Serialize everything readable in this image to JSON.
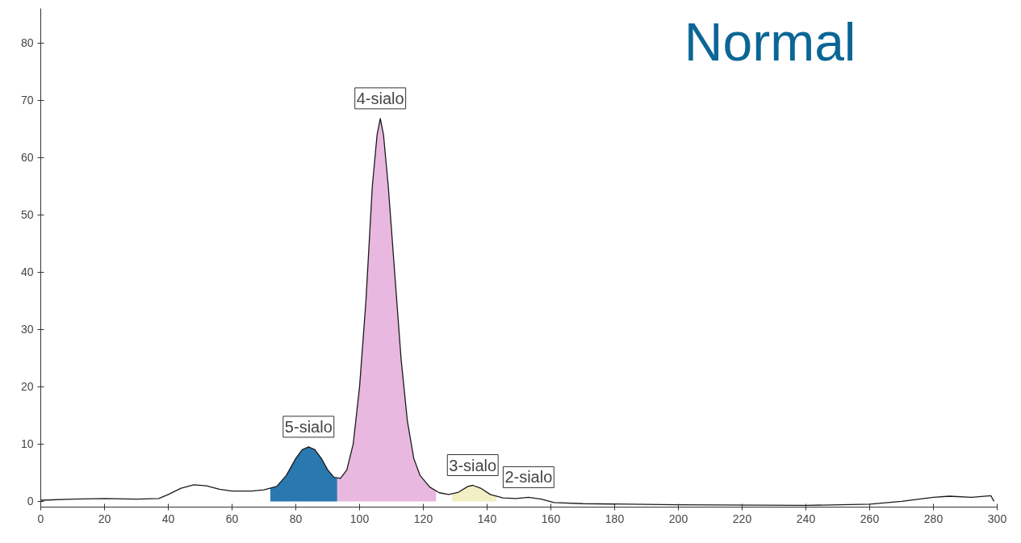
{
  "chart_data": {
    "type": "line",
    "title": "Normal",
    "xlim": [
      0,
      300
    ],
    "ylim": [
      -1,
      86
    ],
    "xticks": [
      0,
      20,
      40,
      60,
      80,
      100,
      120,
      140,
      160,
      180,
      200,
      220,
      240,
      260,
      280,
      300
    ],
    "yticks": [
      0,
      10,
      20,
      30,
      40,
      50,
      60,
      70,
      80
    ],
    "series": [
      {
        "type": "area",
        "color": "#2a78b0",
        "x": [
          72,
          74,
          77,
          80,
          82,
          84,
          86,
          88,
          90,
          92,
          93
        ],
        "values": [
          2.3,
          2.6,
          4.5,
          7.5,
          9.0,
          9.5,
          9.0,
          7.5,
          5.5,
          4.2,
          4.0
        ]
      },
      {
        "type": "area",
        "color": "#e8b8e0",
        "x": [
          93,
          94,
          96,
          98,
          100,
          102,
          104,
          105.5,
          106.5,
          107.5,
          109,
          111,
          113,
          115,
          117,
          119,
          122,
          124
        ],
        "values": [
          4.0,
          4.0,
          5.5,
          10,
          20,
          35,
          55,
          64,
          66.8,
          64,
          55,
          40,
          25,
          14,
          7.5,
          4.5,
          2.5,
          1.8
        ]
      },
      {
        "type": "area",
        "color": "#f3efc4",
        "x": [
          129,
          131,
          134,
          135.5,
          138,
          141,
          143
        ],
        "values": [
          1.3,
          1.6,
          2.6,
          2.8,
          2.3,
          1.2,
          0.9
        ]
      },
      {
        "color": "#1a1a1a",
        "x": [
          0,
          10,
          20,
          30,
          37,
          40,
          44,
          48,
          52,
          56,
          60,
          66,
          70,
          74,
          77,
          80,
          82,
          84,
          86,
          88,
          90,
          92,
          94,
          96,
          98,
          100,
          102,
          104,
          105.5,
          106.5,
          107.5,
          109,
          111,
          113,
          115,
          117,
          119,
          122,
          125,
          128,
          131,
          134,
          135.5,
          138,
          141,
          145,
          149,
          153,
          157,
          161,
          170,
          200,
          240,
          260,
          270,
          280,
          285,
          292,
          298,
          299
        ],
        "values": [
          0.2,
          0.4,
          0.5,
          0.4,
          0.5,
          1.2,
          2.3,
          2.9,
          2.7,
          2.1,
          1.8,
          1.8,
          2.0,
          2.6,
          4.5,
          7.5,
          9.0,
          9.5,
          9.0,
          7.5,
          5.5,
          4.2,
          4.0,
          5.5,
          10,
          20,
          35,
          55,
          64,
          66.8,
          64,
          55,
          40,
          25,
          14,
          7.5,
          4.5,
          2.5,
          1.5,
          1.2,
          1.6,
          2.6,
          2.8,
          2.3,
          1.2,
          0.6,
          0.5,
          0.7,
          0.4,
          -0.2,
          -0.4,
          -0.6,
          -0.7,
          -0.5,
          0,
          0.7,
          0.9,
          0.7,
          1.0,
          0
        ]
      }
    ],
    "annotations": [
      {
        "text": "5-sialo",
        "x": 84,
        "y": 9.5
      },
      {
        "text": "4-sialo",
        "x": 106.5,
        "y": 66.8
      },
      {
        "text": "3-sialo",
        "x": 135.5,
        "y": 2.8
      },
      {
        "text": "2-sialo",
        "x": 153,
        "y": 0.7
      }
    ]
  }
}
